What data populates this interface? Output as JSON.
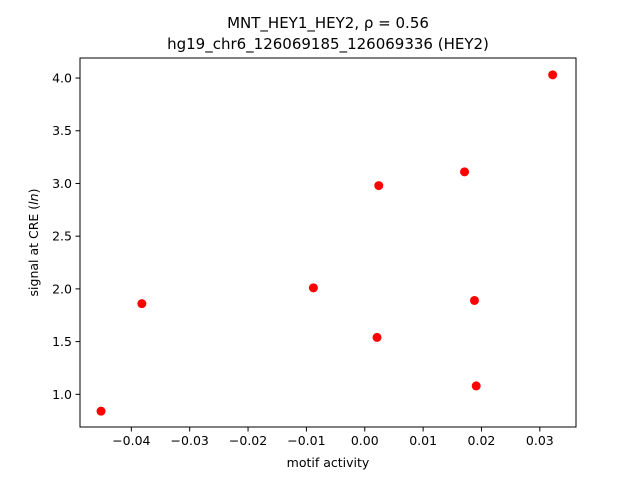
{
  "chart_data": {
    "type": "scatter",
    "title_line1": "MNT_HEY1_HEY2, ρ = 0.56",
    "title_line2": "hg19_chr6_126069185_126069336 (HEY2)",
    "xlabel": "motif activity",
    "ylabel": "signal at CRE (ln)",
    "xlim": [
      -0.0488,
      0.0362
    ],
    "ylim": [
      0.69,
      4.19
    ],
    "xticks": [
      -0.04,
      -0.03,
      -0.02,
      -0.01,
      0.0,
      0.01,
      0.02,
      0.03
    ],
    "xtick_labels": [
      "−0.04",
      "−0.03",
      "−0.02",
      "−0.01",
      "0.00",
      "0.01",
      "0.02",
      "0.03"
    ],
    "yticks": [
      1.0,
      1.5,
      2.0,
      2.5,
      3.0,
      3.5,
      4.0
    ],
    "ytick_labels": [
      "1.0",
      "1.5",
      "2.0",
      "2.5",
      "3.0",
      "3.5",
      "4.0"
    ],
    "grid": false,
    "marker_color": "#ff0000",
    "points": [
      {
        "x": -0.0452,
        "y": 0.84
      },
      {
        "x": -0.0382,
        "y": 1.86
      },
      {
        "x": -0.0088,
        "y": 2.01
      },
      {
        "x": 0.0021,
        "y": 1.54
      },
      {
        "x": 0.0024,
        "y": 2.98
      },
      {
        "x": 0.0171,
        "y": 3.11
      },
      {
        "x": 0.0188,
        "y": 1.89
      },
      {
        "x": 0.0191,
        "y": 1.08
      },
      {
        "x": 0.0322,
        "y": 4.03
      }
    ]
  }
}
